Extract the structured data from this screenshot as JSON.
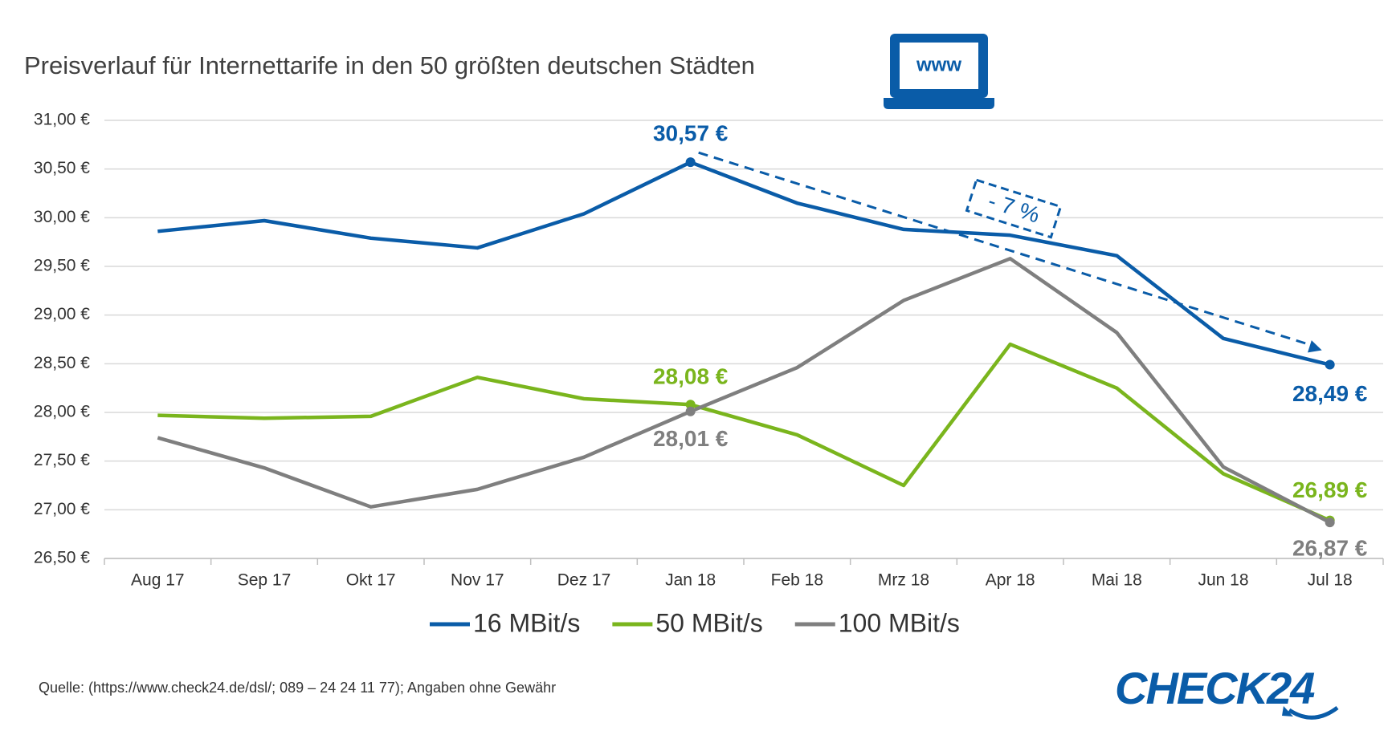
{
  "chart_data": {
    "type": "line",
    "title": "Preisverlauf für Internettarife in den 50 größten deutschen Städten",
    "categories": [
      "Aug 17",
      "Sep 17",
      "Okt 17",
      "Nov 17",
      "Dez 17",
      "Jan 18",
      "Feb 18",
      "Mrz 18",
      "Apr 18",
      "Mai 18",
      "Jun 18",
      "Jul 18"
    ],
    "series": [
      {
        "name": "16 MBit/s",
        "color": "#0a5ca8",
        "values": [
          29.86,
          29.97,
          29.79,
          29.69,
          30.04,
          30.57,
          30.15,
          29.88,
          29.82,
          29.61,
          28.76,
          28.49
        ],
        "value_labels": [
          null,
          null,
          null,
          null,
          null,
          "30,57 €",
          null,
          null,
          null,
          null,
          null,
          "28,49 €"
        ]
      },
      {
        "name": "50 MBit/s",
        "color": "#7ab51d",
        "values": [
          27.97,
          27.94,
          27.96,
          28.36,
          28.14,
          28.08,
          27.77,
          27.25,
          28.7,
          28.25,
          27.37,
          26.89
        ],
        "value_labels": [
          null,
          null,
          null,
          null,
          null,
          "28,08 €",
          null,
          null,
          null,
          null,
          null,
          "26,89 €"
        ]
      },
      {
        "name": "100 MBit/s",
        "color": "#7f7f7f",
        "values": [
          27.74,
          27.43,
          27.03,
          27.21,
          27.54,
          28.01,
          28.46,
          29.15,
          29.58,
          28.82,
          27.44,
          26.87
        ],
        "value_labels": [
          null,
          null,
          null,
          null,
          null,
          "28,01 €",
          null,
          null,
          null,
          null,
          null,
          "26,87 €"
        ]
      }
    ],
    "ylim": [
      26.5,
      31.0
    ],
    "yticks": [
      {
        "value": 26.5,
        "label": "26,50 €"
      },
      {
        "value": 27.0,
        "label": "27,00 €"
      },
      {
        "value": 27.5,
        "label": "27,50 €"
      },
      {
        "value": 28.0,
        "label": "28,00 €"
      },
      {
        "value": 28.5,
        "label": "28,50 €"
      },
      {
        "value": 29.0,
        "label": "29,00 €"
      },
      {
        "value": 29.5,
        "label": "29,50 €"
      },
      {
        "value": 30.0,
        "label": "30,00 €"
      },
      {
        "value": 30.5,
        "label": "30,50 €"
      },
      {
        "value": 31.0,
        "label": "31,00 €"
      }
    ],
    "grid": true,
    "legend": "bottom",
    "annotation": "- 7 %",
    "icon_text": "www",
    "source": "Quelle: (https://www.check24.de/dsl/; 089 – 24 24 11 77); Angaben ohne Gewähr",
    "logo": "CHECK24"
  }
}
